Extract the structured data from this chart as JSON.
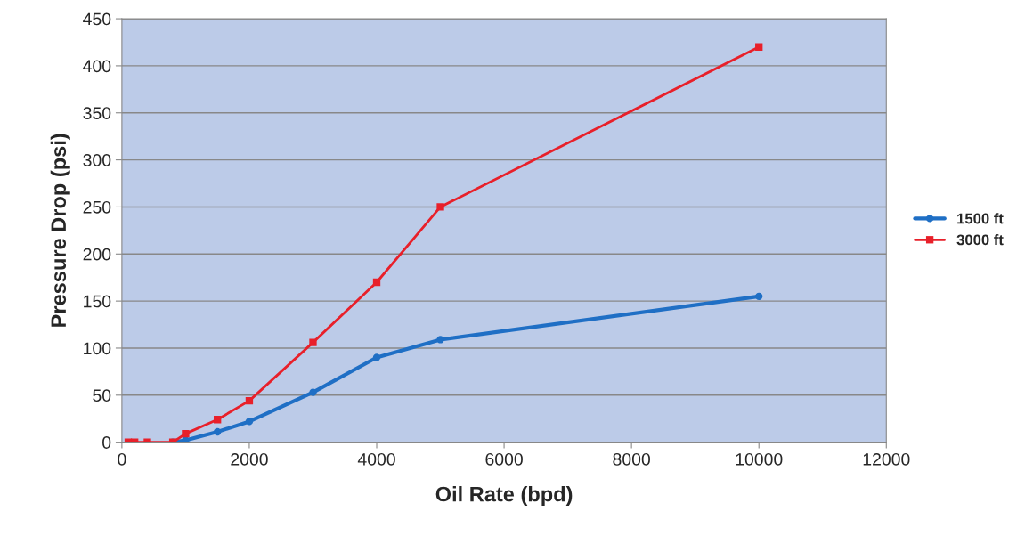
{
  "chart_data": {
    "type": "line",
    "xlabel": "Oil Rate (bpd)",
    "ylabel": "Pressure Drop (psi)",
    "xlim": [
      0,
      12000
    ],
    "xticks": [
      0,
      2000,
      4000,
      6000,
      8000,
      10000,
      12000
    ],
    "ylim": [
      0,
      450
    ],
    "yticks": [
      0,
      50,
      100,
      150,
      200,
      250,
      300,
      350,
      400,
      450
    ],
    "grid": "y",
    "legend": "right",
    "series": [
      {
        "name": "1500 ft",
        "color": "#1f6fc5",
        "marker": "circle",
        "x": [
          800,
          1000,
          1500,
          2000,
          3000,
          4000,
          5000,
          10000
        ],
        "values": [
          0,
          2,
          11,
          22,
          53,
          90,
          109,
          155
        ]
      },
      {
        "name": "3000 ft",
        "color": "#e8202a",
        "marker": "square",
        "x": [
          100,
          200,
          400,
          800,
          1000,
          1500,
          2000,
          3000,
          4000,
          5000,
          10000
        ],
        "values": [
          0,
          0,
          0,
          0,
          9,
          24,
          44,
          106,
          170,
          250,
          420
        ]
      }
    ]
  }
}
